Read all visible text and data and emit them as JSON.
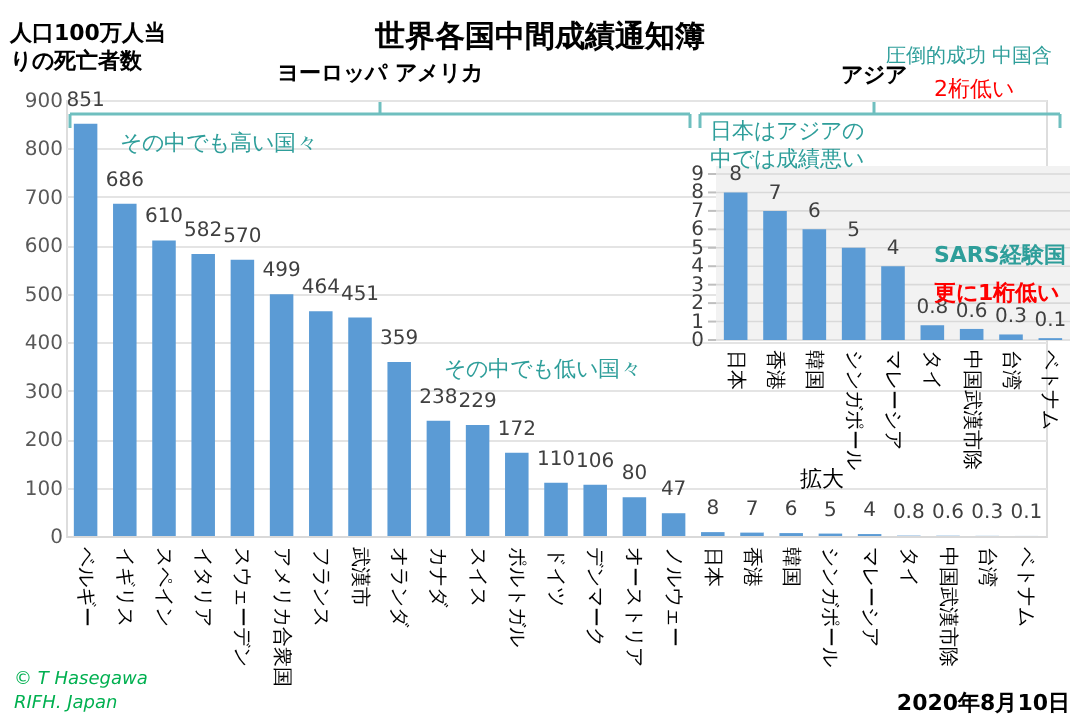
{
  "chart_data": [
    {
      "type": "bar",
      "title": "世界各国中間成績通知簿",
      "ylabel": "人口100万人当りの死亡者数",
      "categories": [
        "ベルギー",
        "イギリス",
        "スペイン",
        "イタリア",
        "スウェーデン",
        "アメリカ合衆国",
        "フランス",
        "武漢市",
        "オランダ",
        "カナダ",
        "スイス",
        "ポルトガル",
        "ドイツ",
        "デンマーク",
        "オーストリア",
        "ノルウェー",
        "日本",
        "香港",
        "韓国",
        "シンガポール",
        "マレーシア",
        "タイ",
        "中国武漢市除",
        "台湾",
        "ベトナム"
      ],
      "values": [
        851,
        686,
        610,
        582,
        570,
        499,
        464,
        451,
        359,
        238,
        229,
        172,
        110,
        106,
        80,
        47,
        8,
        7,
        6,
        5,
        4,
        0.8,
        0.6,
        0.3,
        0.1
      ],
      "color": "#5b9bd5",
      "ylim": [
        0,
        900
      ],
      "yticks": [
        0,
        100,
        200,
        300,
        400,
        500,
        600,
        700,
        800,
        900
      ],
      "grid": "y",
      "data_labels": true,
      "annotations": [
        "ヨーロッパ アメリカ",
        "アジア",
        "圧倒的成功 中国含",
        "2桁低い",
        "その中でも高い国々",
        "その中でも低い国々",
        "拡大",
        "© T Hasegawa\nRIFH. Japan",
        "2020年8月10日"
      ]
    },
    {
      "type": "bar",
      "categories": [
        "日本",
        "香港",
        "韓国",
        "シンガポール",
        "マレーシア",
        "タイ",
        "中国武漢市除",
        "台湾",
        "ベトナム"
      ],
      "values": [
        8,
        7,
        6,
        5,
        4,
        0.8,
        0.6,
        0.3,
        0.1
      ],
      "color": "#5b9bd5",
      "ylim": [
        0,
        9
      ],
      "yticks": [
        0,
        1,
        2,
        3,
        4,
        5,
        6,
        7,
        8,
        9
      ],
      "grid": "y",
      "data_labels": true,
      "annotations": [
        "日本はアジアの中では成績悪い",
        "SARS経験国",
        "更に1桁低い"
      ]
    }
  ]
}
